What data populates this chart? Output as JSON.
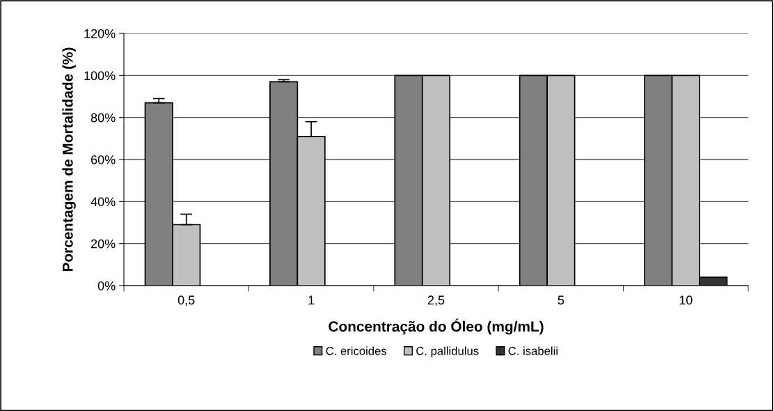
{
  "chart_data": {
    "type": "bar",
    "xlabel": "Concentração do Óleo (mg/mL)",
    "ylabel": "Porcentagem de Mortalidade (%)",
    "categories": [
      "0,5",
      "1",
      "2,5",
      "5",
      "10"
    ],
    "series": [
      {
        "name": "C. ericoides",
        "color": "#808080",
        "values": [
          87,
          97,
          100,
          100,
          100
        ],
        "errors": [
          [
            87,
            89
          ],
          [
            97,
            98
          ],
          null,
          null,
          null
        ]
      },
      {
        "name": "C. pallidulus",
        "color": "#c0c0c0",
        "values": [
          29,
          71,
          100,
          100,
          100
        ],
        "errors": [
          [
            29,
            34
          ],
          [
            71,
            78
          ],
          null,
          null,
          null
        ]
      },
      {
        "name": "C. isabelii",
        "color": "#333333",
        "values": [
          null,
          null,
          null,
          null,
          4
        ]
      }
    ],
    "ylim": [
      0,
      120
    ],
    "yticks": [
      {
        "value": 0,
        "label": "0%"
      },
      {
        "value": 20,
        "label": "20%"
      },
      {
        "value": 40,
        "label": "40%"
      },
      {
        "value": 60,
        "label": "60%"
      },
      {
        "value": 80,
        "label": "80%"
      },
      {
        "value": 100,
        "label": "100%"
      },
      {
        "value": 120,
        "label": "120%"
      }
    ],
    "grid": "y",
    "legend": "bottom"
  }
}
